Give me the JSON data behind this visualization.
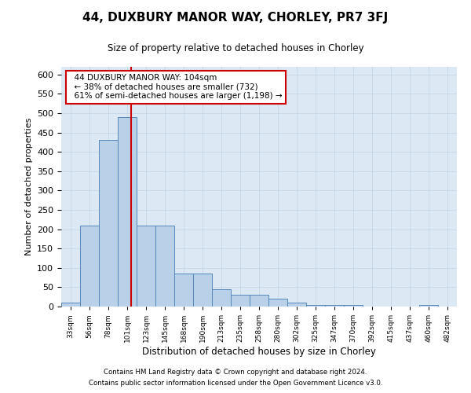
{
  "title": "44, DUXBURY MANOR WAY, CHORLEY, PR7 3FJ",
  "subtitle": "Size of property relative to detached houses in Chorley",
  "xlabel": "Distribution of detached houses by size in Chorley",
  "ylabel": "Number of detached properties",
  "footer_line1": "Contains HM Land Registry data © Crown copyright and database right 2024.",
  "footer_line2": "Contains public sector information licensed under the Open Government Licence v3.0.",
  "annotation_line1": "44 DUXBURY MANOR WAY: 104sqm",
  "annotation_line2": "← 38% of detached houses are smaller (732)",
  "annotation_line3": "61% of semi-detached houses are larger (1,198) →",
  "property_size": 104,
  "bar_color": "#b8d0e8",
  "bar_edge_color": "#5588bb",
  "red_line_color": "#cc0000",
  "annotation_box_color": "#cc0000",
  "grid_color": "#c8d8e8",
  "background_color": "#dce9f5",
  "categories": [
    "33sqm",
    "56sqm",
    "78sqm",
    "101sqm",
    "123sqm",
    "145sqm",
    "168sqm",
    "190sqm",
    "213sqm",
    "235sqm",
    "258sqm",
    "280sqm",
    "302sqm",
    "325sqm",
    "347sqm",
    "370sqm",
    "392sqm",
    "415sqm",
    "437sqm",
    "460sqm",
    "482sqm"
  ],
  "bin_edges": [
    22,
    44,
    66,
    88,
    110,
    132,
    154,
    176,
    198,
    220,
    242,
    264,
    286,
    308,
    330,
    352,
    374,
    396,
    418,
    440,
    462,
    484
  ],
  "values": [
    10,
    210,
    430,
    490,
    210,
    210,
    85,
    85,
    45,
    30,
    30,
    20,
    10,
    5,
    5,
    5,
    0,
    0,
    0,
    5,
    0
  ],
  "ylim": [
    0,
    620
  ],
  "yticks": [
    0,
    50,
    100,
    150,
    200,
    250,
    300,
    350,
    400,
    450,
    500,
    550,
    600
  ]
}
